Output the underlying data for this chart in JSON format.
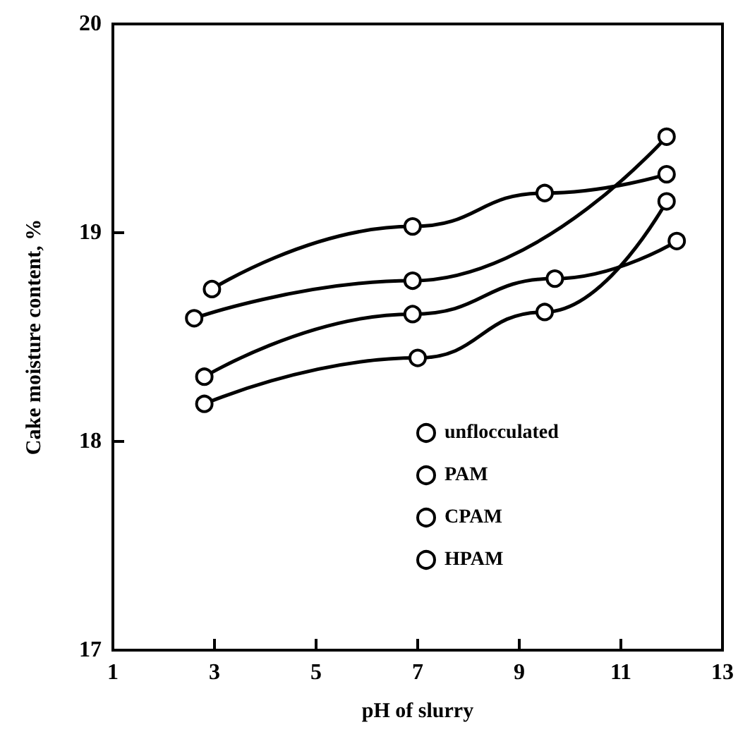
{
  "chart_data": {
    "type": "line",
    "xlabel": "pH of slurry",
    "ylabel": "Cake moisture content, %",
    "xlim": [
      1,
      13
    ],
    "xticks": [
      1,
      3,
      5,
      7,
      9,
      11,
      13
    ],
    "ylim": [
      17,
      20
    ],
    "yticks": [
      17,
      18,
      19,
      20
    ],
    "grid": false,
    "legend": "bottom right",
    "marker": "circle",
    "line_style": "solid",
    "series": [
      {
        "name": "unflocculated",
        "color": "#000000",
        "x": [
          2.8,
          7.0,
          9.5,
          11.9
        ],
        "values": [
          18.18,
          18.4,
          18.62,
          19.15
        ]
      },
      {
        "name": "PAM",
        "color": "#000000",
        "x": [
          2.8,
          6.9,
          9.7,
          12.1
        ],
        "values": [
          18.31,
          18.61,
          18.78,
          18.96
        ]
      },
      {
        "name": "CPAM",
        "color": "#000000",
        "x": [
          2.6,
          6.9,
          11.9
        ],
        "values": [
          18.59,
          18.77,
          19.46
        ]
      },
      {
        "name": "HPAM",
        "color": "#000000",
        "x": [
          2.95,
          6.9,
          9.5,
          11.9
        ],
        "values": [
          18.73,
          19.03,
          19.19,
          19.28
        ]
      }
    ]
  }
}
